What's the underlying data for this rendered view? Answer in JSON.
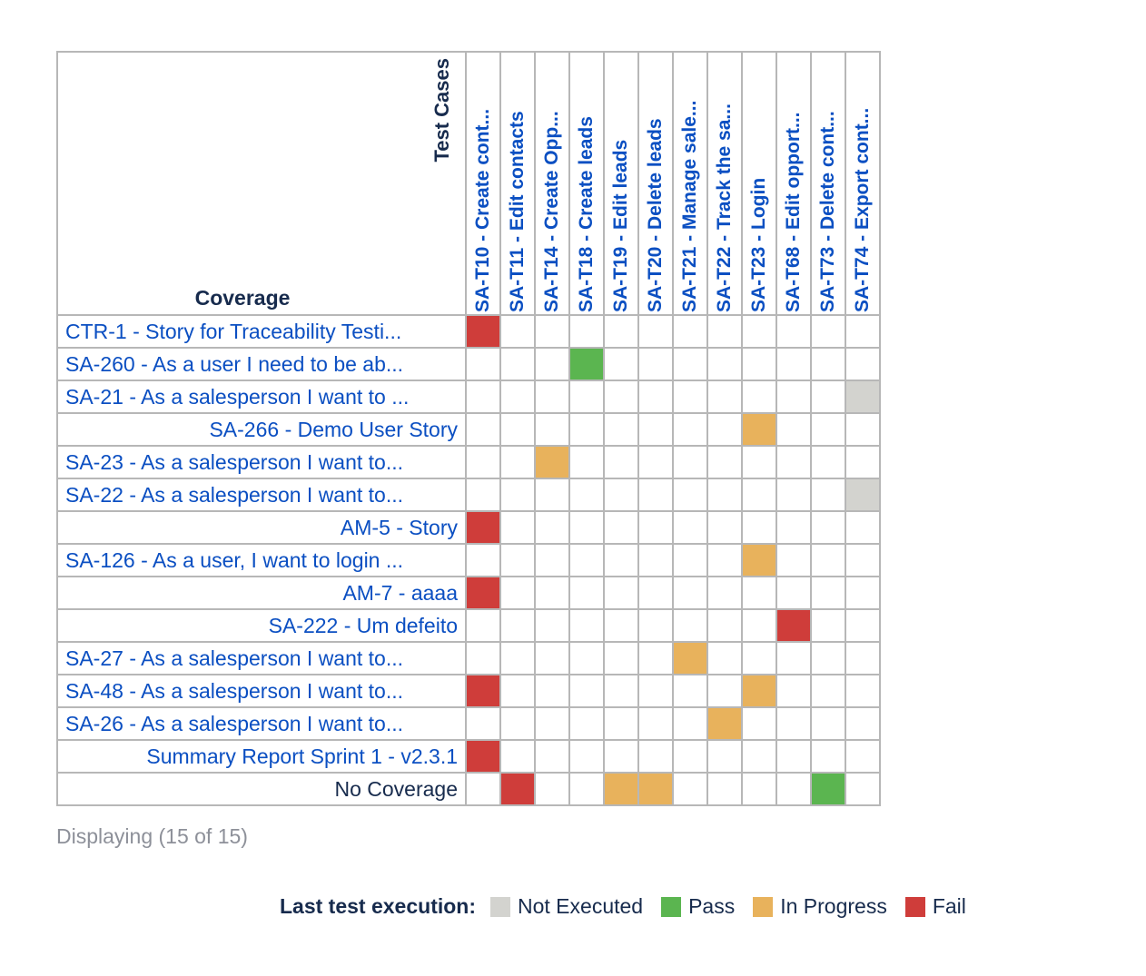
{
  "matrix": {
    "corner_top_label": "Test Cases",
    "corner_bottom_label": "Coverage",
    "columns": [
      "SA-T10 - Create cont...",
      "SA-T11 - Edit contacts",
      "SA-T14 - Create Opp...",
      "SA-T18 - Create leads",
      "SA-T19 - Edit leads",
      "SA-T20 - Delete leads",
      "SA-T21 - Manage sale...",
      "SA-T22 - Track the sa...",
      "SA-T23 - Login",
      "SA-T68 - Edit opport...",
      "SA-T73 - Delete cont...",
      "SA-T74 - Export cont..."
    ],
    "rows": [
      {
        "label": "CTR-1 - Story for Traceability Testi...",
        "align": "left",
        "link": true,
        "cells": [
          "fail",
          "",
          "",
          "",
          "",
          "",
          "",
          "",
          "",
          "",
          "",
          ""
        ]
      },
      {
        "label": "SA-260 - As a user I need to be ab...",
        "align": "left",
        "link": true,
        "cells": [
          "",
          "",
          "",
          "pass",
          "",
          "",
          "",
          "",
          "",
          "",
          "",
          ""
        ]
      },
      {
        "label": "SA-21 - As a salesperson I want to ...",
        "align": "left",
        "link": true,
        "cells": [
          "",
          "",
          "",
          "",
          "",
          "",
          "",
          "",
          "",
          "",
          "",
          "none"
        ]
      },
      {
        "label": "SA-266 - Demo User Story",
        "align": "right",
        "link": true,
        "cells": [
          "",
          "",
          "",
          "",
          "",
          "",
          "",
          "",
          "prog",
          "",
          "",
          ""
        ]
      },
      {
        "label": "SA-23 - As a salesperson I want to...",
        "align": "left",
        "link": true,
        "cells": [
          "",
          "",
          "prog",
          "",
          "",
          "",
          "",
          "",
          "",
          "",
          "",
          ""
        ]
      },
      {
        "label": "SA-22 - As a salesperson I want to...",
        "align": "left",
        "link": true,
        "cells": [
          "",
          "",
          "",
          "",
          "",
          "",
          "",
          "",
          "",
          "",
          "",
          "none"
        ]
      },
      {
        "label": "AM-5 - Story",
        "align": "right",
        "link": true,
        "cells": [
          "fail",
          "",
          "",
          "",
          "",
          "",
          "",
          "",
          "",
          "",
          "",
          ""
        ]
      },
      {
        "label": "SA-126 - As a user, I want to login ...",
        "align": "left",
        "link": true,
        "cells": [
          "",
          "",
          "",
          "",
          "",
          "",
          "",
          "",
          "prog",
          "",
          "",
          ""
        ]
      },
      {
        "label": "AM-7 - aaaa",
        "align": "right",
        "link": true,
        "cells": [
          "fail",
          "",
          "",
          "",
          "",
          "",
          "",
          "",
          "",
          "",
          "",
          ""
        ]
      },
      {
        "label": "SA-222 - Um defeito",
        "align": "right",
        "link": true,
        "cells": [
          "",
          "",
          "",
          "",
          "",
          "",
          "",
          "",
          "",
          "fail",
          "",
          ""
        ]
      },
      {
        "label": "SA-27 - As a salesperson I want to...",
        "align": "left",
        "link": true,
        "cells": [
          "",
          "",
          "",
          "",
          "",
          "",
          "prog",
          "",
          "",
          "",
          "",
          ""
        ]
      },
      {
        "label": "SA-48 - As a salesperson I want to...",
        "align": "left",
        "link": true,
        "cells": [
          "fail",
          "",
          "",
          "",
          "",
          "",
          "",
          "",
          "prog",
          "",
          "",
          ""
        ]
      },
      {
        "label": "SA-26 - As a salesperson I want to...",
        "align": "left",
        "link": true,
        "cells": [
          "",
          "",
          "",
          "",
          "",
          "",
          "",
          "prog",
          "",
          "",
          "",
          ""
        ]
      },
      {
        "label": "Summary Report Sprint 1 - v2.3.1",
        "align": "right",
        "link": true,
        "cells": [
          "fail",
          "",
          "",
          "",
          "",
          "",
          "",
          "",
          "",
          "",
          "",
          ""
        ]
      },
      {
        "label": "No Coverage",
        "align": "right",
        "link": false,
        "cells": [
          "",
          "fail",
          "",
          "",
          "prog",
          "prog",
          "",
          "",
          "",
          "",
          "pass",
          ""
        ]
      }
    ]
  },
  "displaying": "Displaying (15 of 15)",
  "legend": {
    "title": "Last test execution:",
    "items": [
      {
        "label": "Not Executed",
        "color": "#d3d3cf"
      },
      {
        "label": "Pass",
        "color": "#5bb550"
      },
      {
        "label": "In Progress",
        "color": "#e8b25c"
      },
      {
        "label": "Fail",
        "color": "#cf3d3a"
      }
    ]
  },
  "colors": {
    "link": "#0b4fc2",
    "fail": "#cf3d3a",
    "pass": "#5bb550",
    "in_progress": "#e8b25c",
    "not_executed": "#d3d3cf"
  }
}
